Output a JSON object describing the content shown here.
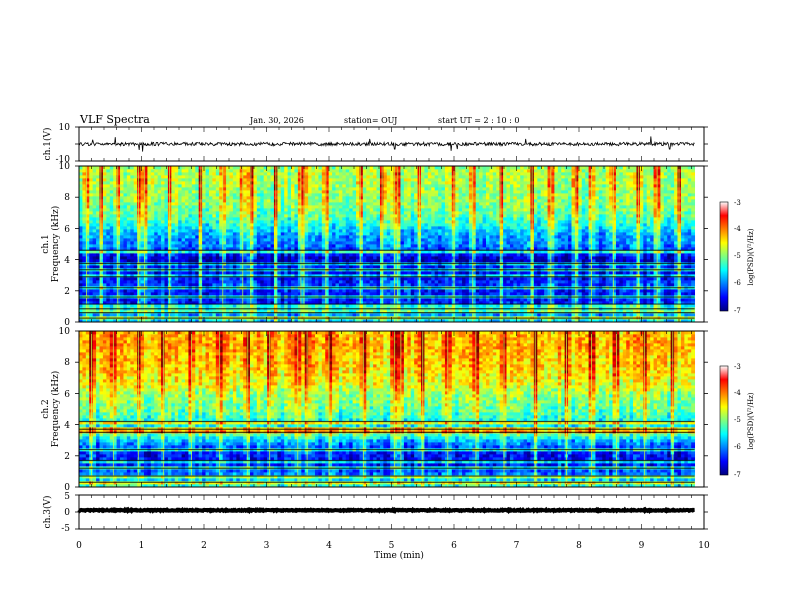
{
  "header": {
    "title": "VLF Spectra",
    "date": "Jan. 30, 2026",
    "station": "station= OUJ",
    "start_ut": "start  UT =   2  : 10 : 0"
  },
  "chart_data": [
    {
      "id": "ch1-waveform",
      "type": "line",
      "ylabel": "ch.1(V)",
      "ylim": [
        -10,
        10
      ],
      "yticks": [
        "10",
        "-10"
      ],
      "xlim": [
        0,
        10
      ],
      "data_extent_min": 9.85,
      "baseline": 0,
      "noise_amplitude": 1.0,
      "spikes": [
        {
          "x": 0.22,
          "y": 2.5
        },
        {
          "x": 0.58,
          "y": 4.0
        },
        {
          "x": 0.96,
          "y": -3.5
        },
        {
          "x": 1.02,
          "y": -4.5
        },
        {
          "x": 4.65,
          "y": 3.0
        },
        {
          "x": 5.05,
          "y": -3.0
        },
        {
          "x": 5.95,
          "y": -4.0
        },
        {
          "x": 6.05,
          "y": -3.0
        },
        {
          "x": 7.15,
          "y": 3.0
        },
        {
          "x": 9.15,
          "y": 4.5
        },
        {
          "x": 9.45,
          "y": -3.0
        }
      ]
    },
    {
      "id": "ch1-spectrogram",
      "type": "heatmap",
      "ylabel_line1": "ch.1",
      "ylabel_line2": "Frequency (kHz)",
      "ylim": [
        0,
        10
      ],
      "yticks": [
        "0",
        "2",
        "4",
        "6",
        "8",
        "10"
      ],
      "xlim": [
        0,
        10
      ],
      "data_extent_min": 9.85,
      "colorbar": {
        "label": "log(PSD)(V²/Hz)",
        "range": [
          -7,
          -3
        ],
        "ticks": [
          "-3",
          "-4",
          "-5",
          "-6",
          "-7"
        ]
      },
      "level_profile": [
        {
          "f": 0,
          "v": -5.6
        },
        {
          "f": 0.5,
          "v": -5.9
        },
        {
          "f": 1.0,
          "v": -6.3
        },
        {
          "f": 1.5,
          "v": -6.5
        },
        {
          "f": 2.0,
          "v": -6.4
        },
        {
          "f": 2.5,
          "v": -6.3
        },
        {
          "f": 3.0,
          "v": -6.6
        },
        {
          "f": 3.5,
          "v": -6.4
        },
        {
          "f": 4.0,
          "v": -6.8
        },
        {
          "f": 4.5,
          "v": -6.3
        },
        {
          "f": 5.0,
          "v": -6.0
        },
        {
          "f": 5.5,
          "v": -5.9
        },
        {
          "f": 6.0,
          "v": -5.6
        },
        {
          "f": 6.5,
          "v": -5.3
        },
        {
          "f": 7.0,
          "v": -5.1
        },
        {
          "f": 7.5,
          "v": -5.0
        },
        {
          "f": 8.0,
          "v": -4.9
        },
        {
          "f": 8.5,
          "v": -4.9
        },
        {
          "f": 9.0,
          "v": -4.8
        },
        {
          "f": 9.5,
          "v": -4.8
        },
        {
          "f": 10.0,
          "v": -4.9
        }
      ],
      "transmitter_lines_khz": [
        0.25,
        0.6,
        0.85,
        1.15,
        1.6,
        2.2,
        2.9,
        3.35,
        3.75,
        4.6
      ],
      "event_times_min": [
        0.12,
        0.35,
        0.62,
        0.95,
        1.05,
        1.45,
        1.95,
        2.3,
        2.62,
        2.75,
        3.15,
        3.55,
        3.6,
        3.95,
        4.5,
        4.85,
        5.05,
        5.1,
        5.45,
        6.0,
        6.3,
        6.75,
        7.25,
        7.55,
        7.95,
        8.2,
        8.55,
        8.95,
        9.25,
        9.6
      ]
    },
    {
      "id": "ch2-spectrogram",
      "type": "heatmap",
      "ylabel_line1": "ch.2",
      "ylabel_line2": "Frequency (kHz)",
      "ylim": [
        0,
        10
      ],
      "yticks": [
        "0",
        "2",
        "4",
        "6",
        "8",
        "10"
      ],
      "xlim": [
        0,
        10
      ],
      "data_extent_min": 9.85,
      "colorbar": {
        "label": "log(PSD)(V²/Hz)",
        "range": [
          -7,
          -3
        ],
        "ticks": [
          "-3",
          "-4",
          "-5",
          "-6",
          "-7"
        ]
      },
      "level_profile": [
        {
          "f": 0,
          "v": -5.3
        },
        {
          "f": 0.5,
          "v": -5.7
        },
        {
          "f": 1.0,
          "v": -6.2
        },
        {
          "f": 1.5,
          "v": -6.5
        },
        {
          "f": 2.0,
          "v": -6.5
        },
        {
          "f": 2.5,
          "v": -6.3
        },
        {
          "f": 3.0,
          "v": -5.8
        },
        {
          "f": 3.5,
          "v": -5.0
        },
        {
          "f": 4.0,
          "v": -5.6
        },
        {
          "f": 4.5,
          "v": -5.3
        },
        {
          "f": 5.0,
          "v": -5.1
        },
        {
          "f": 5.5,
          "v": -5.0
        },
        {
          "f": 6.0,
          "v": -4.9
        },
        {
          "f": 6.5,
          "v": -4.6
        },
        {
          "f": 7.0,
          "v": -4.5
        },
        {
          "f": 7.5,
          "v": -4.4
        },
        {
          "f": 8.0,
          "v": -4.3
        },
        {
          "f": 8.5,
          "v": -4.3
        },
        {
          "f": 9.0,
          "v": -4.2
        },
        {
          "f": 9.5,
          "v": -4.2
        },
        {
          "f": 10.0,
          "v": -4.3
        }
      ],
      "transmitter_lines_khz": [
        0.3,
        0.7,
        1.2,
        1.7,
        2.4,
        3.5,
        3.7,
        4.2
      ],
      "event_times_min": [
        0.2,
        0.55,
        0.95,
        1.35,
        1.8,
        2.25,
        2.7,
        3.05,
        3.5,
        3.65,
        4.0,
        4.55,
        5.05,
        5.15,
        5.5,
        5.9,
        6.35,
        6.8,
        7.3,
        7.8,
        8.2,
        8.6,
        9.05,
        9.5
      ]
    },
    {
      "id": "ch3-waveform",
      "type": "line",
      "ylabel": "ch.3(V)",
      "ylim": [
        -5,
        5
      ],
      "yticks": [
        "5",
        "0",
        "-5"
      ],
      "xlim": [
        0,
        10
      ],
      "data_extent_min": 9.85,
      "baseline": 0.5,
      "noise_amplitude": 0.15
    }
  ],
  "x_axis": {
    "label": "Time (min)",
    "ticks": [
      "0",
      "1",
      "2",
      "3",
      "4",
      "5",
      "6",
      "7",
      "8",
      "9",
      "10"
    ]
  },
  "colors": {
    "colormap": [
      "#00007f",
      "#0000ff",
      "#007fff",
      "#00ffff",
      "#7fff7f",
      "#ffff00",
      "#ff7f00",
      "#ff0000",
      "#7f0000"
    ],
    "line": "#000000"
  }
}
